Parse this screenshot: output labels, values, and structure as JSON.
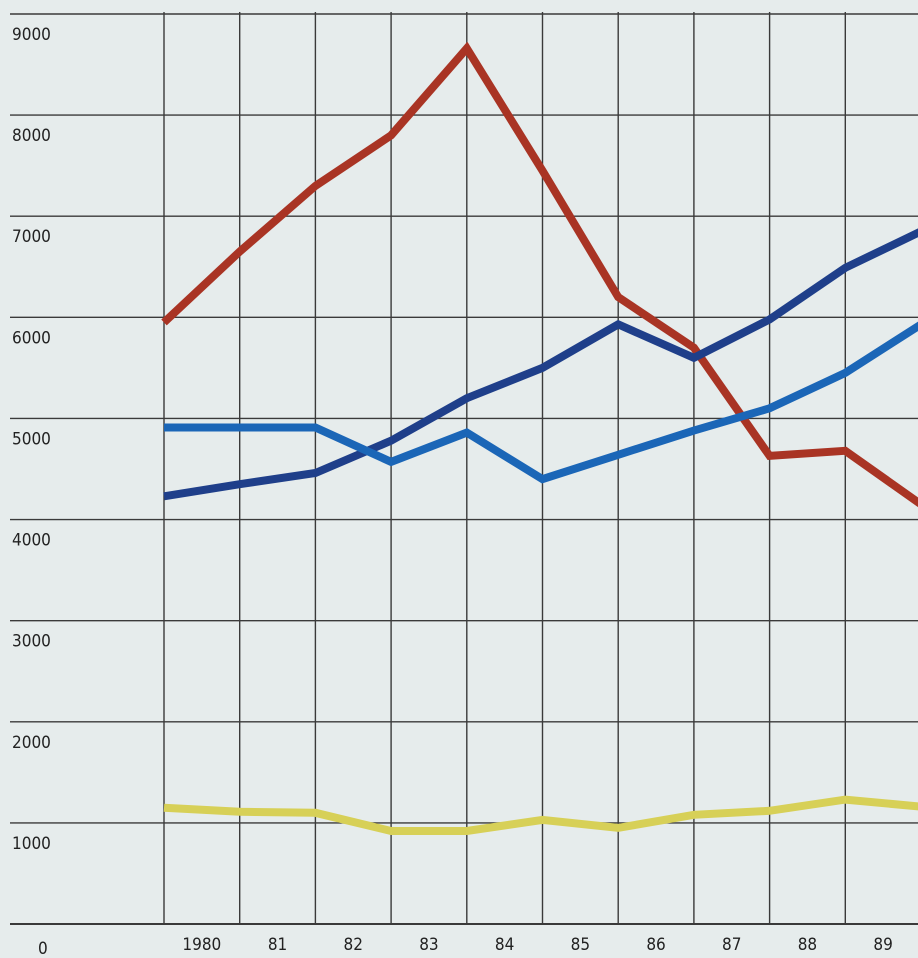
{
  "chart_data": {
    "type": "line",
    "title": "",
    "xlabel": "",
    "ylabel": "",
    "x": [
      "1979",
      "1980",
      "1981",
      "1982",
      "1983",
      "1984",
      "1985",
      "1986",
      "1987",
      "1988",
      "1989"
    ],
    "x_tick_labels": [
      "1980",
      "81",
      "82",
      "83",
      "84",
      "85",
      "86",
      "87",
      "88",
      "89"
    ],
    "y_tick_labels": [
      "0",
      "1000",
      "2000",
      "3000",
      "4000",
      "5000",
      "6000",
      "7000",
      "8000",
      "9000"
    ],
    "ylim": [
      0,
      9000
    ],
    "grid": true,
    "legend": "none",
    "series": [
      {
        "color": "#a93424",
        "values": [
          5950,
          6650,
          7300,
          7800,
          8660,
          7450,
          6200,
          5700,
          4630,
          4680,
          4150
        ]
      },
      {
        "color": "#1f3f8a",
        "values": [
          4230,
          4350,
          4460,
          4780,
          5200,
          5500,
          5930,
          5600,
          5980,
          6490,
          6850
        ]
      },
      {
        "color": "#1b66b7",
        "values": [
          4910,
          4910,
          4910,
          4570,
          4860,
          4400,
          4640,
          4880,
          5100,
          5450,
          5930
        ]
      },
      {
        "color": "#d7d057",
        "values": [
          1150,
          1110,
          1100,
          920,
          920,
          1030,
          950,
          1080,
          1120,
          1230,
          1160
        ]
      }
    ]
  }
}
